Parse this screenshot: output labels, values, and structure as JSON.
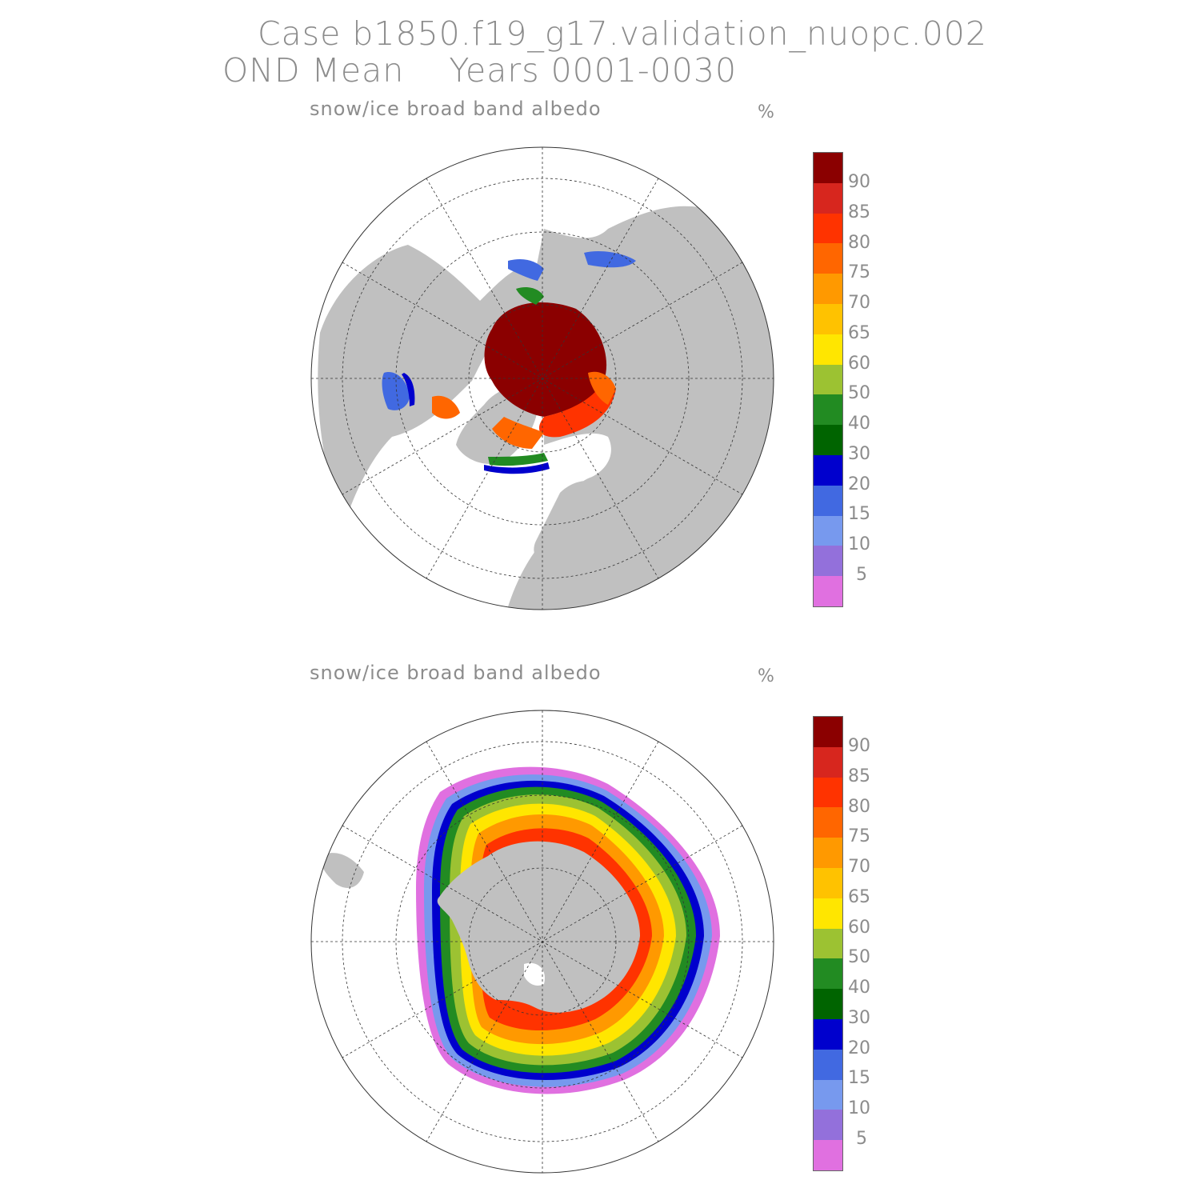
{
  "header": {
    "case_line": "Case b1850.f19_g17.validation_nuopc.002",
    "period_line": "OND Mean    Years 0001-0030"
  },
  "panels": [
    {
      "id": "nh",
      "title": "snow/ice broad band albedo",
      "units": "%"
    },
    {
      "id": "sh",
      "title": "snow/ice broad band albedo",
      "units": "%"
    }
  ],
  "colorbar": {
    "labels": [
      "90",
      "85",
      "80",
      "75",
      "70",
      "65",
      "60",
      "50",
      "40",
      "30",
      "20",
      "15",
      "10",
      "5"
    ],
    "colors": [
      "#8b0000",
      "#d7261e",
      "#ff3300",
      "#ff6600",
      "#ff9900",
      "#ffc200",
      "#ffe600",
      "#9cc232",
      "#228b22",
      "#006400",
      "#0000cd",
      "#4169e1",
      "#7799ee",
      "#9370db",
      "#e070e0"
    ]
  },
  "map_colors": {
    "land": "#c0c0c0",
    "ocean": "#ffffff"
  }
}
